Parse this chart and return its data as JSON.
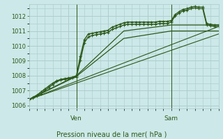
{
  "background_color": "#cce8e8",
  "grid_color": "#aacaca",
  "line_color": "#2d5a1b",
  "text_color": "#2d5a1b",
  "xlabel": "Pression niveau de la mer( hPa )",
  "ylim": [
    1005.8,
    1012.8
  ],
  "yticks": [
    1006,
    1007,
    1008,
    1009,
    1010,
    1011,
    1012
  ],
  "xlim": [
    0,
    48
  ],
  "ven_x": 12,
  "sam_x": 36,
  "xtick_labels": [
    [
      "Ven",
      12
    ],
    [
      "Sam",
      36
    ]
  ],
  "lines": [
    {
      "x": [
        0,
        1,
        2,
        3,
        4,
        5,
        6,
        7,
        8,
        9,
        10,
        11,
        12,
        13,
        14,
        15,
        16,
        17,
        18,
        19,
        20,
        21,
        22,
        23,
        24,
        25,
        26,
        27,
        28,
        29,
        30,
        31,
        32,
        33,
        34,
        35,
        36,
        37,
        38,
        39,
        40,
        41,
        42,
        43,
        44,
        45,
        46,
        47,
        48
      ],
      "y": [
        1006.4,
        1006.5,
        1006.65,
        1006.8,
        1007.0,
        1007.2,
        1007.4,
        1007.6,
        1007.7,
        1007.75,
        1007.8,
        1007.85,
        1007.9,
        1009.0,
        1010.2,
        1010.6,
        1010.7,
        1010.75,
        1010.8,
        1010.85,
        1010.9,
        1011.1,
        1011.2,
        1011.3,
        1011.4,
        1011.45,
        1011.45,
        1011.45,
        1011.45,
        1011.45,
        1011.45,
        1011.45,
        1011.45,
        1011.5,
        1011.5,
        1011.5,
        1011.6,
        1012.0,
        1012.2,
        1012.35,
        1012.4,
        1012.5,
        1012.55,
        1012.5,
        1012.5,
        1011.4,
        1011.35,
        1011.3,
        1011.3
      ],
      "marker": "+",
      "lw": 1.0,
      "ms": 3.5
    },
    {
      "x": [
        0,
        1,
        2,
        3,
        4,
        5,
        6,
        7,
        8,
        9,
        10,
        11,
        12,
        13,
        14,
        15,
        16,
        17,
        18,
        19,
        20,
        21,
        22,
        23,
        24,
        25,
        26,
        27,
        28,
        29,
        30,
        31,
        32,
        33,
        34,
        35,
        36,
        37,
        38,
        39,
        40,
        41,
        42,
        43,
        44,
        45,
        46,
        47,
        48
      ],
      "y": [
        1006.4,
        1006.55,
        1006.7,
        1006.9,
        1007.1,
        1007.3,
        1007.5,
        1007.65,
        1007.75,
        1007.8,
        1007.85,
        1007.9,
        1008.0,
        1009.3,
        1010.4,
        1010.8,
        1010.85,
        1010.9,
        1010.95,
        1011.0,
        1011.05,
        1011.25,
        1011.35,
        1011.45,
        1011.55,
        1011.6,
        1011.6,
        1011.6,
        1011.6,
        1011.6,
        1011.6,
        1011.6,
        1011.6,
        1011.65,
        1011.65,
        1011.65,
        1011.7,
        1012.1,
        1012.3,
        1012.45,
        1012.5,
        1012.6,
        1012.65,
        1012.6,
        1012.6,
        1011.5,
        1011.45,
        1011.4,
        1011.4
      ],
      "marker": "+",
      "lw": 1.0,
      "ms": 3.5
    },
    {
      "x": [
        0,
        12,
        24,
        36,
        48
      ],
      "y": [
        1006.4,
        1008.0,
        1011.0,
        1011.4,
        1011.4
      ],
      "marker": null,
      "lw": 0.9,
      "ms": 0
    },
    {
      "x": [
        0,
        12,
        24,
        36,
        48
      ],
      "y": [
        1006.4,
        1007.95,
        1010.5,
        1011.0,
        1011.0
      ],
      "marker": null,
      "lw": 0.9,
      "ms": 0
    },
    {
      "x": [
        0,
        48
      ],
      "y": [
        1006.4,
        1011.3
      ],
      "marker": null,
      "lw": 0.8,
      "ms": 0
    },
    {
      "x": [
        0,
        48
      ],
      "y": [
        1006.4,
        1010.8
      ],
      "marker": null,
      "lw": 0.8,
      "ms": 0
    }
  ]
}
